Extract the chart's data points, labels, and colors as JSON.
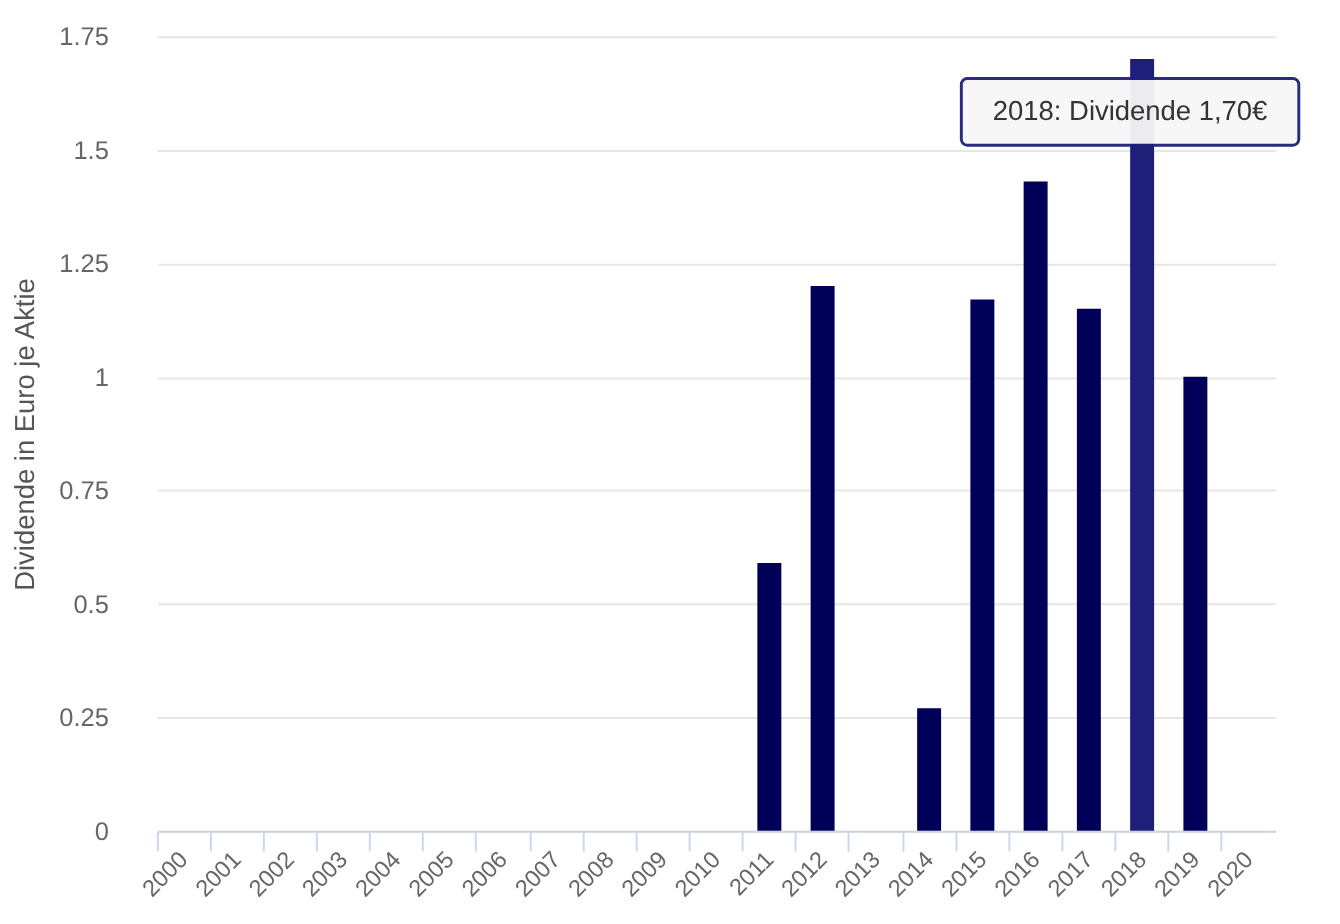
{
  "chart_data": {
    "type": "bar",
    "ylabel": "Dividende in Euro je Aktie",
    "categories": [
      "2000",
      "2001",
      "2002",
      "2003",
      "2004",
      "2005",
      "2006",
      "2007",
      "2008",
      "2009",
      "2010",
      "2011",
      "2012",
      "2013",
      "2014",
      "2015",
      "2016",
      "2017",
      "2018",
      "2019",
      "2020"
    ],
    "values": [
      null,
      null,
      null,
      null,
      null,
      null,
      null,
      null,
      null,
      null,
      null,
      0.59,
      1.2,
      null,
      0.27,
      1.17,
      1.43,
      1.15,
      1.7,
      1.0,
      null
    ],
    "colors": [
      "#000058",
      "#000058",
      "#000058",
      "#000058",
      "#000058",
      "#000058",
      "#000058",
      "#000058",
      "#000058",
      "#000058",
      "#000058",
      "#000058",
      "#000058",
      "#000058",
      "#000058",
      "#000058",
      "#000058",
      "#000058",
      "#1f1f7a",
      "#000058",
      "#000058"
    ],
    "ylim": [
      0,
      1.75
    ],
    "yticks": [
      0,
      0.25,
      0.5,
      0.75,
      1,
      1.25,
      1.5,
      1.75
    ],
    "grid": "y",
    "annotations": [
      {
        "text": "2018: Dividende 1,70€",
        "x": "2018",
        "y": 1.7
      }
    ]
  }
}
